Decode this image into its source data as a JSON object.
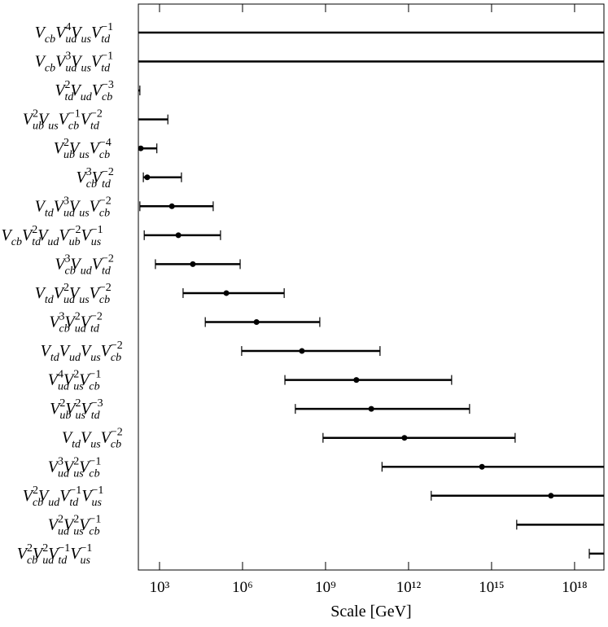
{
  "chart_data": {
    "type": "errorbar",
    "xlabel": "Scale [GeV]",
    "log_x": true,
    "xlim": [
      172,
      1.15e+19
    ],
    "xticks": [
      {
        "value": 1000,
        "label": "10³"
      },
      {
        "value": 1000000,
        "label": "10⁶"
      },
      {
        "value": 1000000000,
        "label": "10⁹"
      },
      {
        "value": 1000000000000,
        "label": "10¹²"
      },
      {
        "value": 1000000000000000,
        "label": "10¹⁵"
      },
      {
        "value": 1000000000000000000,
        "label": "10¹⁸"
      }
    ],
    "color": "#000000",
    "categories": [
      "V_{cb}V_{ud}^{4}V_{us}V_{td}^{−1}",
      "V_{cb}V_{ud}^{3}V_{us}V_{td}^{−1}",
      "V_{td}^{2}V_{ud}V_{cb}^{−3}",
      "V_{ub}^{2}V_{us}V_{cb}^{−1}V_{td}^{−2}",
      "V_{ub}^{2}V_{us}V_{cb}^{−4}",
      "V_{cb}^{3}V_{td}^{−2}",
      "V_{td}V_{ud}^{3}V_{us}V_{cb}^{−2}",
      "V_{cb}V_{td}^{2}V_{ud}V_{ub}^{−2}V_{us}^{−1}",
      "V_{cb}^{3}V_{ud}V_{td}^{−2}",
      "V_{td}V_{ud}^{2}V_{us}V_{cb}^{−2}",
      "V_{cb}^{3}V_{ud}^{2}V_{td}^{−2}",
      "V_{td}V_{ud}V_{us}V_{cb}^{−2}",
      "V_{ud}^{4}V_{us}^{2}V_{cb}^{−1}",
      "V_{ub}^{2}V_{us}^{2}V_{td}^{−3}",
      "V_{td}V_{us}V_{cb}^{−2}",
      "V_{ud}^{3}V_{us}^{2}V_{cb}^{−1}",
      "V_{cb}^{2}V_{ud}V_{td}^{−1}V_{us}^{−1}",
      "V_{ud}^{2}V_{us}^{2}V_{cb}^{−1}",
      "V_{cb}^{2}V_{ud}^{2}V_{td}^{−1}V_{us}^{−1}"
    ],
    "values": [
      null,
      null,
      null,
      null,
      210,
      360,
      2800,
      4800,
      16000,
      260000,
      3200000,
      140000000,
      13000000000,
      45000000000,
      710000000000,
      450000000000000,
      140000000000000000,
      null,
      null
    ],
    "low": [
      null,
      null,
      null,
      null,
      null,
      260,
      195,
      280,
      710,
      7100,
      45000,
      930000,
      34000000,
      81000000,
      810000000,
      110000000000,
      6600000000000,
      8100000000000000,
      3400000000000000000
    ],
    "high": [
      null,
      null,
      195,
      2000,
      800,
      6200,
      87000,
      160000,
      820000,
      32000000,
      620000000,
      93000000000,
      36000000000000,
      160000000000000,
      7100000000000000,
      null,
      null,
      null,
      null
    ]
  }
}
